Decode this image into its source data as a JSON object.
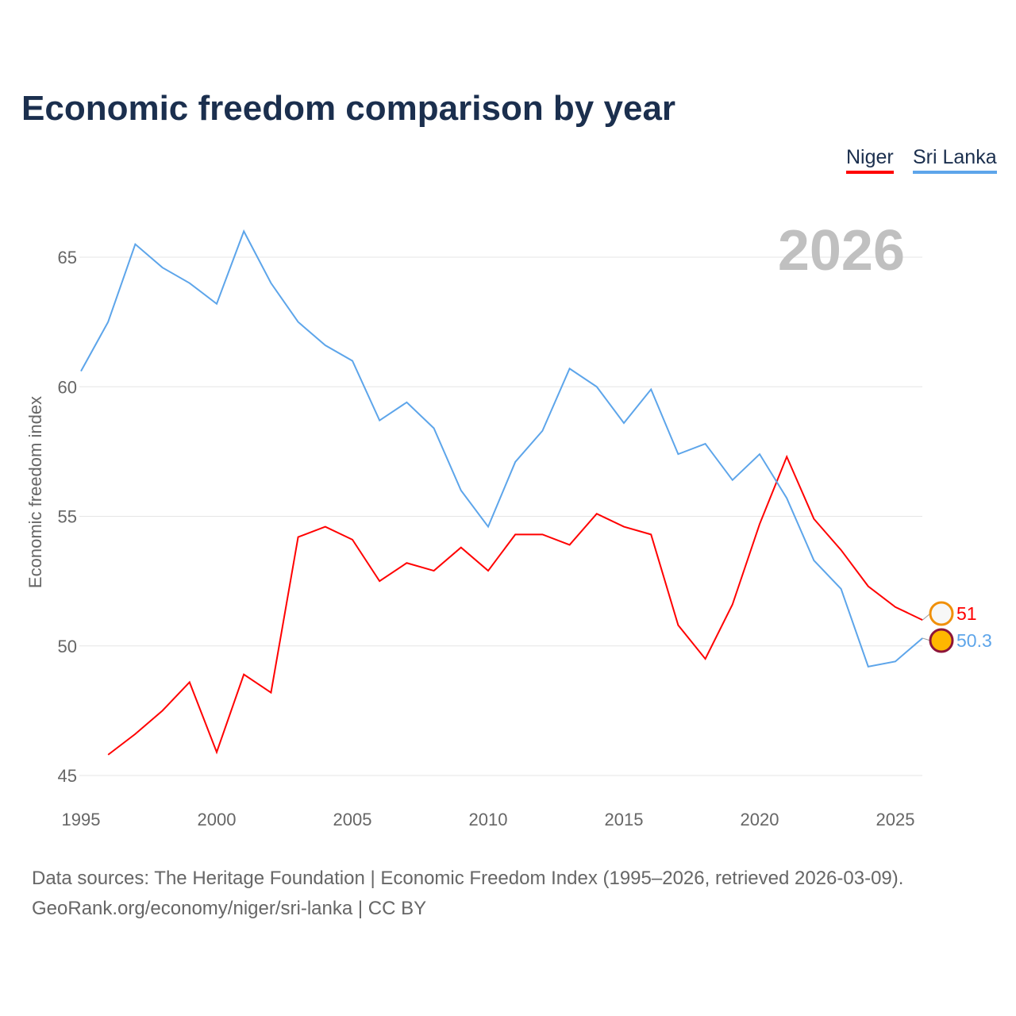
{
  "chart_data": {
    "type": "line",
    "title": "Economic freedom comparison by year",
    "xlabel": "",
    "ylabel": "Economic freedom index",
    "xlim": [
      1995,
      2026
    ],
    "ylim": [
      45,
      67
    ],
    "yticks": [
      45,
      50,
      55,
      60,
      65
    ],
    "xticks": [
      1995,
      2000,
      2005,
      2010,
      2015,
      2020,
      2025
    ],
    "grid": true,
    "legend_position": "top-right",
    "year_label": "2026",
    "series": [
      {
        "name": "Niger",
        "color": "#ff0000",
        "end_label": "51",
        "x": [
          1996,
          1997,
          1998,
          1999,
          2000,
          2001,
          2002,
          2003,
          2004,
          2005,
          2006,
          2007,
          2008,
          2009,
          2010,
          2011,
          2012,
          2013,
          2014,
          2015,
          2016,
          2017,
          2018,
          2019,
          2020,
          2021,
          2022,
          2023,
          2024,
          2025,
          2026
        ],
        "values": [
          45.8,
          46.6,
          47.5,
          48.6,
          45.9,
          48.9,
          48.2,
          54.2,
          54.6,
          54.1,
          52.5,
          53.2,
          52.9,
          53.8,
          52.9,
          54.3,
          54.3,
          53.9,
          55.1,
          54.6,
          54.3,
          50.8,
          49.5,
          51.6,
          54.7,
          57.3,
          54.9,
          53.7,
          52.3,
          51.5,
          51.0
        ]
      },
      {
        "name": "Sri Lanka",
        "color": "#5da5ea",
        "end_label": "50.3",
        "x": [
          1995,
          1996,
          1997,
          1998,
          1999,
          2000,
          2001,
          2002,
          2003,
          2004,
          2005,
          2006,
          2007,
          2008,
          2009,
          2010,
          2011,
          2012,
          2013,
          2014,
          2015,
          2016,
          2017,
          2018,
          2019,
          2020,
          2021,
          2022,
          2023,
          2024,
          2025,
          2026
        ],
        "values": [
          60.6,
          62.5,
          65.5,
          64.6,
          64.0,
          63.2,
          66.0,
          64.0,
          62.5,
          61.6,
          61.0,
          58.7,
          59.4,
          58.4,
          56.0,
          54.6,
          57.1,
          58.3,
          60.7,
          60.0,
          58.6,
          59.9,
          57.4,
          57.8,
          56.4,
          57.4,
          55.7,
          53.3,
          52.2,
          49.2,
          49.4,
          50.3
        ]
      }
    ]
  },
  "source_line1": "Data sources: The Heritage Foundation | Economic Freedom Index (1995–2026, retrieved 2026-03-09).",
  "source_line2": "GeoRank.org/economy/niger/sri-lanka | CC BY"
}
